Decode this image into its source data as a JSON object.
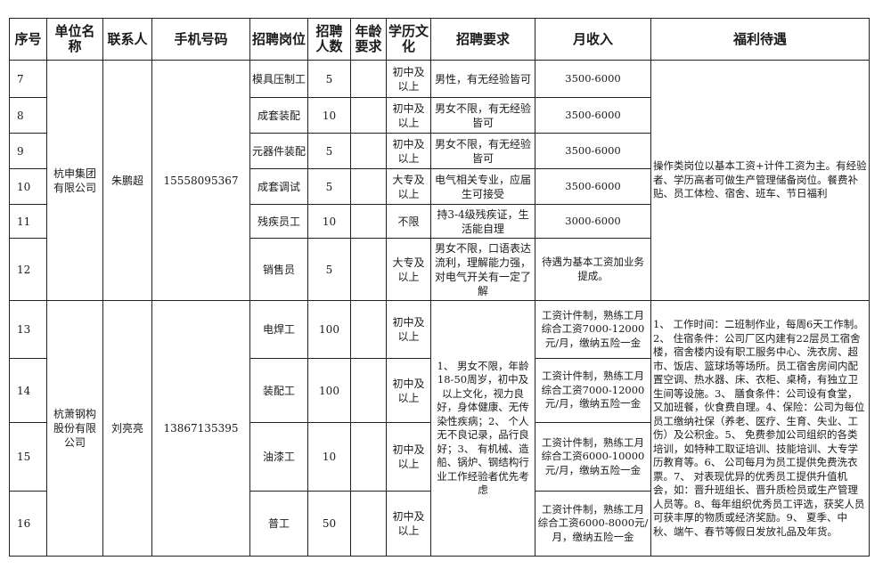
{
  "headers": [
    "序号",
    "单位名称",
    "联系人",
    "手机号码",
    "招聘岗位",
    "招聘人数",
    "年龄要求",
    "学历文化",
    "招聘要求",
    "月收入",
    "福利待遇"
  ],
  "companies": [
    {
      "name": "杭申集团有限公司",
      "contact": "朱鹏超",
      "phone": "15558095367",
      "welfare": "操作类岗位以基本工资+计件工资为主。有经验者、学历高者可做生产管理储备岗位。餐费补贴、员工体检、宿舍、班车、节日福利",
      "rows": [
        {
          "no": "7",
          "position": "模具压制工",
          "count": "5",
          "age": "",
          "edu": "初中及以上",
          "req": "男性，有无经验皆可",
          "income": "3500-6000"
        },
        {
          "no": "8",
          "position": "成套装配",
          "count": "10",
          "age": "",
          "edu": "初中及以上",
          "req": "男女不限，有无经验皆可",
          "income": "3500-6000"
        },
        {
          "no": "9",
          "position": "元器件装配",
          "count": "5",
          "age": "",
          "edu": "初中及以上",
          "req": "男女不限，有无经验皆可",
          "income": "3500-6000"
        },
        {
          "no": "10",
          "position": "成套调试",
          "count": "5",
          "age": "",
          "edu": "大专及以上",
          "req": "电气相关专业，应届生可接受",
          "income": "3500-6000"
        },
        {
          "no": "11",
          "position": "残疾员工",
          "count": "10",
          "age": "",
          "edu": "不限",
          "req": "持3-4级残疾证，生活能自理",
          "income": "3000-6000"
        },
        {
          "no": "12",
          "position": "销售员",
          "count": "5",
          "age": "",
          "edu": "大专及以上",
          "req": "男女不限，口语表达流利，理解能力强，对电气开关有一定了解",
          "income": "待遇为基本工资加业务提成。"
        }
      ]
    },
    {
      "name": "杭萧钢构股份有限公司",
      "contact": "刘亮亮",
      "phone": "13867135395",
      "req": "1、 男女不限，年龄18-50周岁，初中及以上文化，视力良好，身体健康、无传染性疾病；2、 个人无不良记录，品行良好；3、 有机械、造船、锅炉、钢结构行业工作经验者优先考虑",
      "welfare": "1、 工作时间：二班制作业，每周6天工作制。2、 住宿条件：公司厂区内建有22层员工宿舍楼，宿舍楼内设有职工服务中心、洗衣房、超市、饭店、篮球场等场所。员工宿舍房间内配置空调、热水器、床、衣柜、桌椅，有独立卫生间等设施。3、 膳食条件：公司设有食堂，又加班餐，伙食费自理。4、保险：公司为每位员工缴纳社保（养老、医疗、生育、失业、工伤）及公积金。5、 免费参加公司组织的各类培训，如特种工取证培训、技能培训、大专学历教育等。6、 公司每月为员工提供免费洗衣票。7、 对表现优异的优秀员工提供升值机会，如：晋升班组长、晋升质检员或生产管理人员等。8、每年组织优秀员工评选，获奖人员可获丰厚的物质或经济奖励。9、 夏季、中秋、端午、春节等假日发放礼品及年货。",
      "rows": [
        {
          "no": "13",
          "position": "电焊工",
          "count": "100",
          "age": "",
          "edu": "初中及以上",
          "income": "工资计件制，熟练工月综合工资7000-12000元/月，缴纳五险一金"
        },
        {
          "no": "14",
          "position": "装配工",
          "count": "100",
          "age": "",
          "edu": "初中及以上",
          "income": "工资计件制，熟练工月综合工资7000-12000元/月，缴纳五险一金"
        },
        {
          "no": "15",
          "position": "油漆工",
          "count": "10",
          "age": "",
          "edu": "初中及以上",
          "income": "工资计件制，熟练工月综合工资6000-10000元/月，缴纳五险一金"
        },
        {
          "no": "16",
          "position": "普工",
          "count": "50",
          "age": "",
          "edu": "初中及以上",
          "income": "工资计件制，熟练工月综合工资6000-8000元/月，缴纳五险一金"
        }
      ]
    }
  ]
}
